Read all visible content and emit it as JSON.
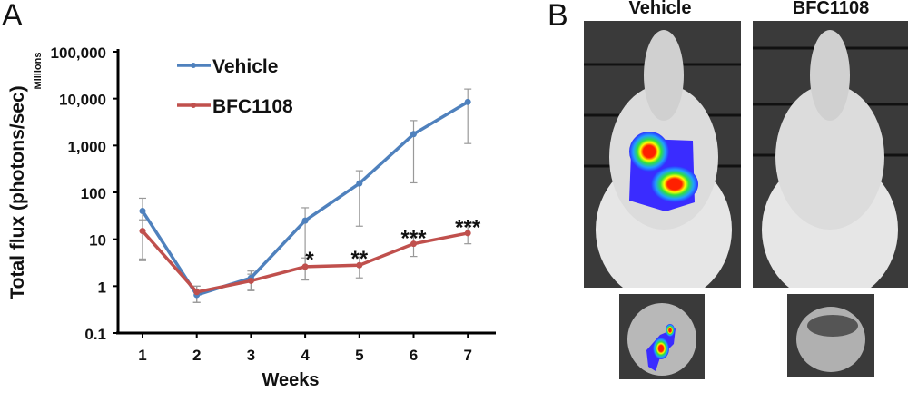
{
  "panels": {
    "a_label": "A",
    "b_label": "B"
  },
  "images": {
    "vehicle_title": "Vehicle",
    "treated_title": "BFC1108"
  },
  "chart_data": {
    "type": "line",
    "xlabel": "Weeks",
    "ylabel": "Total flux (photons/sec)",
    "yunit_label": "Millions",
    "yscale": "log",
    "ylim": [
      0.1,
      100000
    ],
    "yticks": [
      0.1,
      1,
      10,
      100,
      1000,
      10000,
      100000
    ],
    "ytick_labels": [
      "0.1",
      "1",
      "10",
      "100",
      "1,000",
      "10,000",
      "100,000"
    ],
    "x": [
      1,
      2,
      3,
      4,
      5,
      6,
      7
    ],
    "xtick_labels": [
      "1",
      "2",
      "3",
      "4",
      "5",
      "6",
      "7"
    ],
    "grid": false,
    "legend_position": "top-left",
    "series": [
      {
        "name": "Vehicle",
        "color": "#4f81bd",
        "values": [
          40,
          0.65,
          1.5,
          25,
          155,
          1750,
          8500
        ],
        "err_low": [
          3.5,
          0.45,
          0.85,
          1.4,
          19,
          160,
          1100
        ],
        "err_high": [
          75,
          1.0,
          2.1,
          47,
          290,
          3400,
          16000
        ]
      },
      {
        "name": "BFC1108",
        "color": "#c0504d",
        "values": [
          15,
          0.75,
          1.3,
          2.6,
          2.8,
          8,
          13.5
        ],
        "err_low": [
          3.8,
          0.45,
          0.8,
          1.35,
          1.5,
          4.3,
          8
        ],
        "err_high": [
          26,
          1.0,
          1.8,
          4.0,
          4.2,
          11.5,
          19.5
        ]
      }
    ],
    "annotations": [
      {
        "x": 4,
        "text": "*"
      },
      {
        "x": 5,
        "text": "**"
      },
      {
        "x": 6,
        "text": "***"
      },
      {
        "x": 7,
        "text": "***"
      }
    ]
  }
}
